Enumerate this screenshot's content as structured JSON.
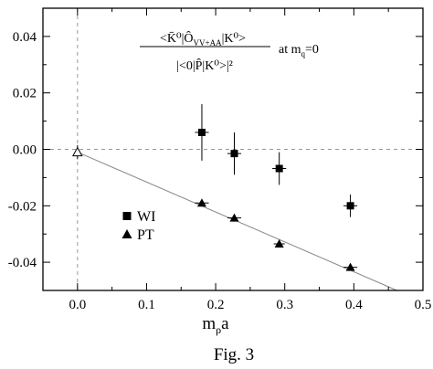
{
  "chart_data": {
    "type": "scatter",
    "caption": "Fig. 3",
    "xlabel": "m",
    "xlabel_sub": "ρ",
    "xlabel_suffix": "a",
    "ylabel": "",
    "xlim": [
      -0.05,
      0.5
    ],
    "ylim": [
      -0.05,
      0.05
    ],
    "xticks": [
      0.0,
      0.1,
      0.2,
      0.3,
      0.4,
      0.5
    ],
    "xtick_labels": [
      "0.0",
      "0.1",
      "0.2",
      "0.3",
      "0.4",
      "0.5"
    ],
    "yticks": [
      -0.04,
      -0.02,
      0.0,
      0.02,
      0.04
    ],
    "ytick_labels": [
      "-0.04",
      "-0.02",
      "0.00",
      "0.02",
      "0.04"
    ],
    "reference_lines": {
      "horizontal_y": 0.0,
      "vertical_x": 0.0,
      "style": "dashed"
    },
    "annotation": {
      "numerator": "<K̄⁰|Ô_{VV+AA}|K⁰>",
      "denominator": "|<0|P̂|K⁰>|²",
      "suffix": "at m_q=0"
    },
    "series": [
      {
        "name": "WI",
        "marker": "square",
        "points": [
          {
            "x": 0.18,
            "y": 0.006,
            "xerr": 0.01,
            "yerr": 0.01
          },
          {
            "x": 0.227,
            "y": -0.0015,
            "xerr": 0.01,
            "yerr": 0.0075
          },
          {
            "x": 0.292,
            "y": -0.0068,
            "xerr": 0.01,
            "yerr": 0.0058
          },
          {
            "x": 0.395,
            "y": -0.02,
            "xerr": 0.01,
            "yerr": 0.004
          }
        ]
      },
      {
        "name": "PT",
        "marker": "triangle-up",
        "points": [
          {
            "x": 0.18,
            "y": -0.019,
            "xerr": 0.01,
            "yerr": 0.001
          },
          {
            "x": 0.227,
            "y": -0.0243,
            "xerr": 0.01,
            "yerr": 0.0008
          },
          {
            "x": 0.292,
            "y": -0.0335,
            "xerr": 0.008,
            "yerr": 0.0008
          },
          {
            "x": 0.395,
            "y": -0.0418,
            "xerr": 0.01,
            "yerr": 0.0008
          }
        ]
      },
      {
        "name": "",
        "marker": "triangle-up-open",
        "points": [
          {
            "x": 0.0,
            "y": -0.001,
            "xerr": 0.0,
            "yerr": 0.0025
          }
        ]
      }
    ],
    "fit_line": {
      "x": [
        0.0,
        0.5
      ],
      "y": [
        -0.001,
        -0.054
      ]
    },
    "legend": {
      "placement": "lower-left",
      "items": [
        {
          "label": "WI",
          "marker": "square"
        },
        {
          "label": "PT",
          "marker": "triangle-up"
        }
      ]
    }
  }
}
